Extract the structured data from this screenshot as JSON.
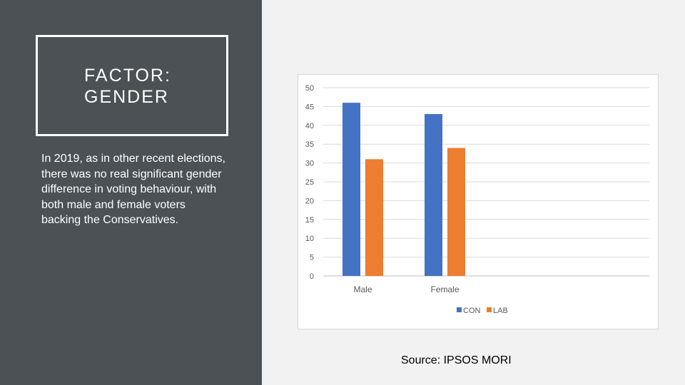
{
  "slide": {
    "title_line1": "FACTOR:",
    "title_line2": "GENDER",
    "body": "In 2019, as in other recent elections, there was no real significant gender difference in voting behaviour, with both male and female voters backing the Conservatives.",
    "source": "Source: IPSOS MORI"
  },
  "colors": {
    "panel": "#4b5155",
    "con": "#4472c4",
    "lab": "#ed7d31"
  },
  "chart_data": {
    "type": "bar",
    "title": "",
    "xlabel": "",
    "ylabel": "",
    "categories": [
      "Male",
      "Female"
    ],
    "series": [
      {
        "name": "CON",
        "values": [
          46,
          43
        ]
      },
      {
        "name": "LAB",
        "values": [
          31,
          34
        ]
      }
    ],
    "ylim": [
      0,
      50
    ],
    "yticks": [
      "0",
      "5",
      "10",
      "15",
      "20",
      "25",
      "30",
      "35",
      "40",
      "45",
      "50"
    ],
    "grid": true,
    "legend": "bottom"
  }
}
